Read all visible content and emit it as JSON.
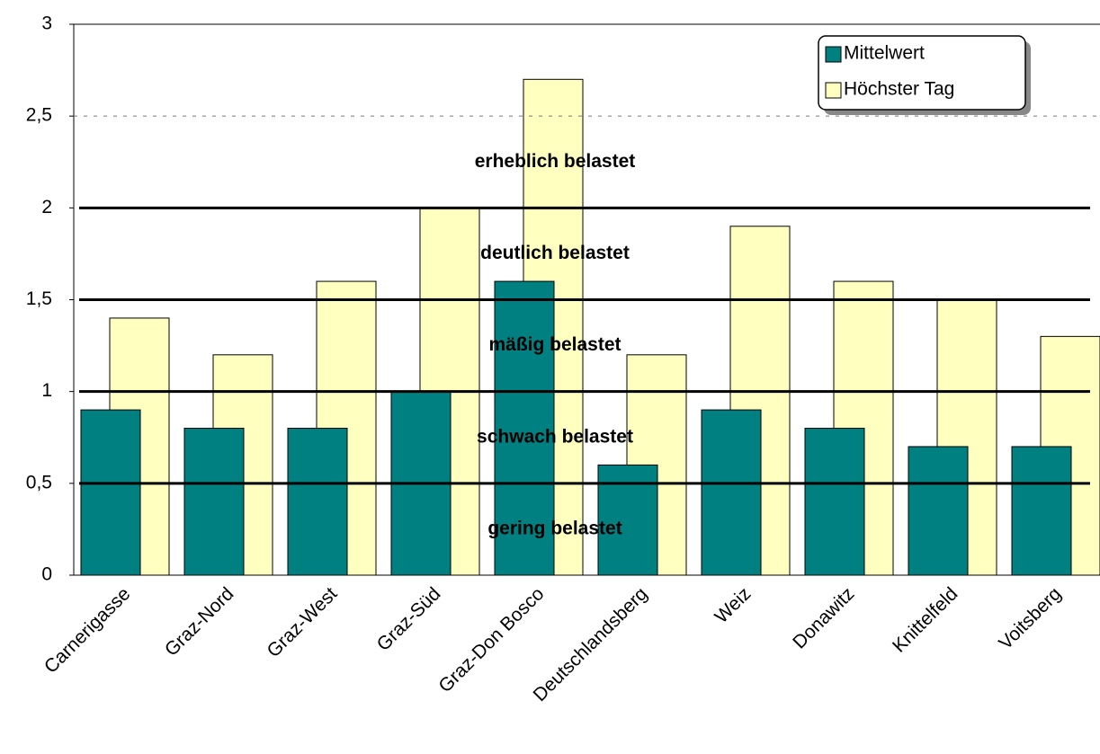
{
  "chart_data": {
    "type": "bar",
    "categories": [
      "Carnerigasse",
      "Graz-Nord",
      "Graz-West",
      "Graz-Süd",
      "Graz-Don Bosco",
      "Deutschlandsberg",
      "Weiz",
      "Donawitz",
      "Knittelfeld",
      "Voitsberg"
    ],
    "series": [
      {
        "name": "Mittelwert",
        "color": "#008080",
        "values": [
          0.9,
          0.8,
          0.8,
          1.0,
          1.6,
          0.6,
          0.9,
          0.8,
          0.7,
          0.7
        ]
      },
      {
        "name": "Höchster Tag",
        "color": "#ffffc0",
        "values": [
          1.4,
          1.2,
          1.6,
          2.0,
          2.7,
          1.2,
          1.9,
          1.6,
          1.5,
          1.3
        ]
      }
    ],
    "ylim": [
      0,
      3
    ],
    "yticks": [
      0,
      {
        "value": 0.5,
        "label": "0,5"
      },
      1,
      {
        "value": 1.5,
        "label": "1,5"
      },
      2,
      {
        "value": 2.5,
        "label": "2,5"
      },
      3
    ],
    "thresholds": [
      0.5,
      1,
      1.5,
      2
    ],
    "upper_limit": 2.5,
    "zones": [
      "gering belastet",
      "schwach belastet",
      "mäßig belastet",
      "deutlich belastet",
      "erheblich belastet"
    ],
    "legend": "top-right"
  }
}
